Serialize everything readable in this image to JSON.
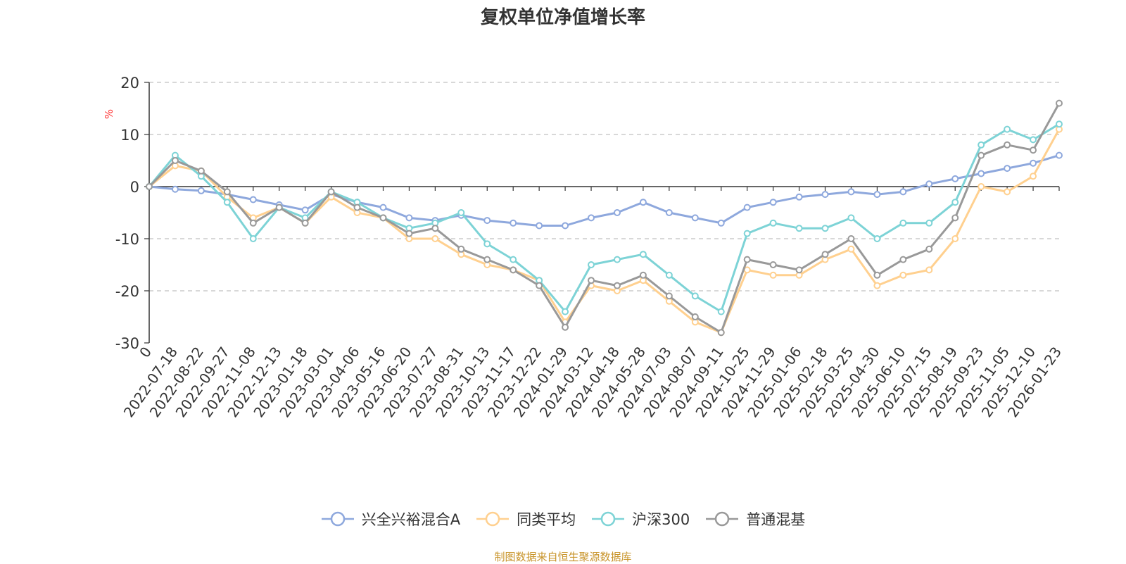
{
  "title": "复权单位净值增长率",
  "source_note": "制图数据来自恒生聚源数据库",
  "chart_data": {
    "type": "line",
    "title": "复权单位净值增长率",
    "ylabel": "%",
    "xlabel": "",
    "ylim": [
      -30,
      20
    ],
    "yticks": [
      20,
      10,
      0,
      -10,
      -20,
      -30
    ],
    "grid": true,
    "legend_position": "bottom",
    "x_tick_labels": [
      "0",
      "2022-07-18",
      "2022-08-22",
      "2022-09-27",
      "2022-11-08",
      "2022-12-13",
      "2023-01-18",
      "2023-03-01",
      "2023-04-06",
      "2023-05-16",
      "2023-06-20",
      "2023-07-27",
      "2023-08-31",
      "2023-10-13",
      "2023-11-17",
      "2023-12-22",
      "2024-01-29",
      "2024-03-12",
      "2024-04-18",
      "2024-05-28",
      "2024-07-03",
      "2024-08-07",
      "2024-09-11",
      "2024-10-25",
      "2024-11-29",
      "2025-01-06",
      "2025-02-18",
      "2025-03-25",
      "2025-04-30",
      "2025-06-10",
      "2025-07-15",
      "2025-08-19",
      "2025-09-23",
      "2025-11-05",
      "2025-12-10",
      "2026-01-23"
    ],
    "series": [
      {
        "name": "兴全兴裕混合A",
        "color": "#8ea8dd",
        "values": [
          0,
          -0.5,
          -0.8,
          -1.5,
          -2.5,
          -3.5,
          -4.5,
          -1.5,
          -3,
          -4,
          -6,
          -6.5,
          -5.5,
          -6.5,
          -7,
          -7.5,
          -7.5,
          -6,
          -5,
          -3,
          -5,
          -6,
          -7,
          -4,
          -3,
          -2,
          -1.5,
          -1,
          -1.5,
          -1,
          0.5,
          1.5,
          2.5,
          3.5,
          4.5,
          6
        ]
      },
      {
        "name": "同类平均",
        "color": "#ffd08f",
        "values": [
          0,
          4,
          3,
          -2,
          -6,
          -4,
          -7,
          -2,
          -5,
          -6,
          -10,
          -10,
          -13,
          -15,
          -16,
          -18,
          -26,
          -19,
          -20,
          -18,
          -22,
          -26,
          -28,
          -16,
          -17,
          -17,
          -14,
          -12,
          -19,
          -17,
          -16,
          -10,
          0,
          -1,
          2,
          11
        ]
      },
      {
        "name": "沪深300",
        "color": "#7dd3d6",
        "values": [
          0,
          6,
          2,
          -3,
          -10,
          -4,
          -6,
          -1,
          -3,
          -6,
          -8,
          -7,
          -5,
          -11,
          -14,
          -18,
          -24,
          -15,
          -14,
          -13,
          -17,
          -21,
          -24,
          -9,
          -7,
          -8,
          -8,
          -6,
          -10,
          -7,
          -7,
          -3,
          8,
          11,
          9,
          12
        ]
      },
      {
        "name": "普通混基",
        "color": "#999999",
        "values": [
          0,
          5,
          3,
          -1,
          -7,
          -4,
          -7,
          -1,
          -4,
          -6,
          -9,
          -8,
          -12,
          -14,
          -16,
          -19,
          -27,
          -18,
          -19,
          -17,
          -21,
          -25,
          -28,
          -14,
          -15,
          -16,
          -13,
          -10,
          -17,
          -14,
          -12,
          -6,
          6,
          8,
          7,
          16
        ]
      }
    ]
  }
}
